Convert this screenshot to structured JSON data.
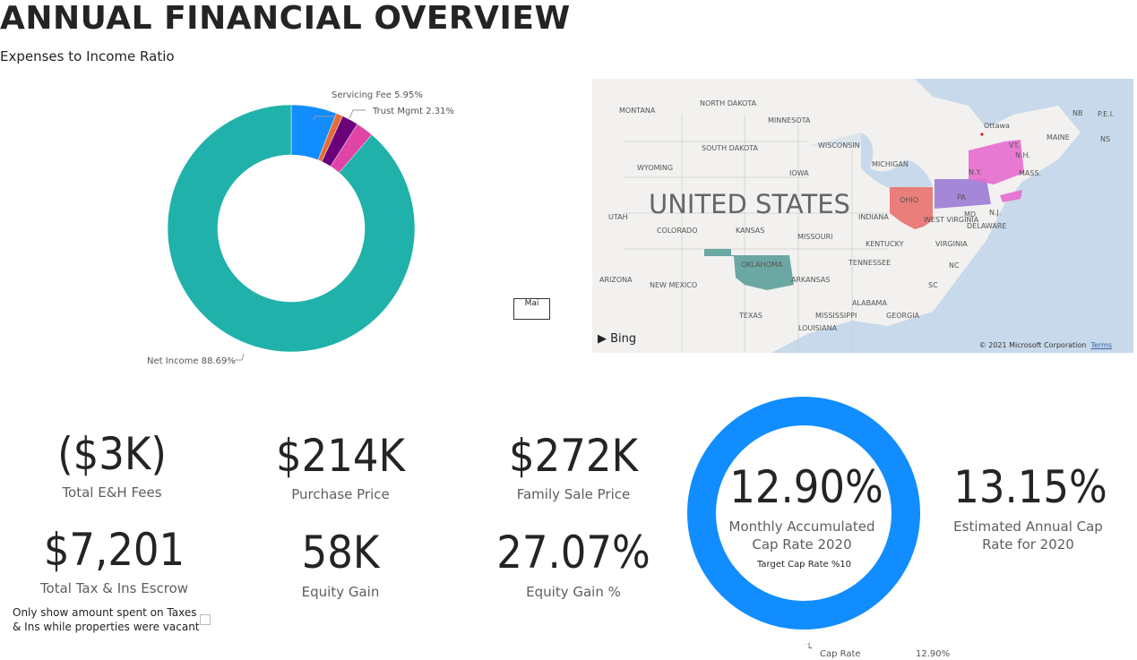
{
  "title": "ANNUAL FINANCIAL OVERVIEW",
  "subtitle": "Expenses to Income Ratio",
  "donut": {
    "type": "pie",
    "slices": [
      {
        "name": "Servicing Fee",
        "value": 5.95,
        "color": "#118DFF"
      },
      {
        "name": "",
        "value": 0.9,
        "color": "#E66C37"
      },
      {
        "name": "",
        "value": 2.15,
        "color": "#6B007B"
      },
      {
        "name": "Trust Mgmt",
        "value": 2.31,
        "color": "#E044A7"
      },
      {
        "name": "Net Income",
        "value": 88.69,
        "color": "#20B2AA"
      }
    ],
    "labels": {
      "servicing": "Servicing Fee 5.95%",
      "trust": "Trust Mgmt 2.31%",
      "net": "Net Income 88.69%"
    }
  },
  "legend_box": "Mai",
  "map": {
    "country": "UNITED STATES",
    "bing": "Bing",
    "copyright": "© 2021 Microsoft Corporation",
    "terms": "Terms",
    "states": [
      "MONTANA",
      "NORTH DAKOTA",
      "MINNESOTA",
      "SOUTH DAKOTA",
      "WISCONSIN",
      "MICHIGAN",
      "WYOMING",
      "IOWA",
      "UTAH",
      "COLORADO",
      "KANSAS",
      "MISSOURI",
      "INDIANA",
      "KENTUCKY",
      "ARIZONA",
      "NEW MEXICO",
      "OKLAHOMA",
      "ARKANSAS",
      "TENNESSEE",
      "TEXAS",
      "MISSISSIPPI",
      "ALABAMA",
      "GEORGIA",
      "LOUISIANA",
      "OHIO",
      "PA",
      "N.Y.",
      "WEST VIRGINIA",
      "VIRGINIA",
      "NC",
      "SC",
      "MD",
      "DELAWARE",
      "N.J.",
      "VT.",
      "N.H.",
      "MAINE",
      "MASS.",
      "NB",
      "P.E.I.",
      "NS",
      "Ottawa"
    ],
    "highlight_colors": {
      "ohio": "#E8716D",
      "pa": "#9B7BD4",
      "ny": "#E66BCF",
      "oklahoma": "#5C9E9A",
      "nj": "#E66BCF"
    }
  },
  "kpis": [
    {
      "value": "($3K)",
      "label": "Total E&H Fees"
    },
    {
      "value": "$214K",
      "label": "Purchase Price"
    },
    {
      "value": "$272K",
      "label": "Family Sale Price"
    },
    {
      "value": "$7,201",
      "label": "Total Tax & Ins Escrow"
    },
    {
      "value": "58K",
      "label": "Equity Gain"
    },
    {
      "value": "27.07%",
      "label": "Equity Gain %"
    }
  ],
  "cap_ring": {
    "value": "12.90%",
    "label_line1": "Monthly Accumulated",
    "label_line2": "Cap Rate 2020",
    "target": "Target Cap Rate %10",
    "legend_name": "Cap Rate",
    "legend_value": "12.90%",
    "color": "#118DFF"
  },
  "annual": {
    "value": "13.15%",
    "label_line1": "Estimated Annual Cap",
    "label_line2": "Rate for 2020"
  },
  "note": {
    "line1": "Only show amount spent on Taxes",
    "line2": "& Ins while properties were vacant"
  }
}
